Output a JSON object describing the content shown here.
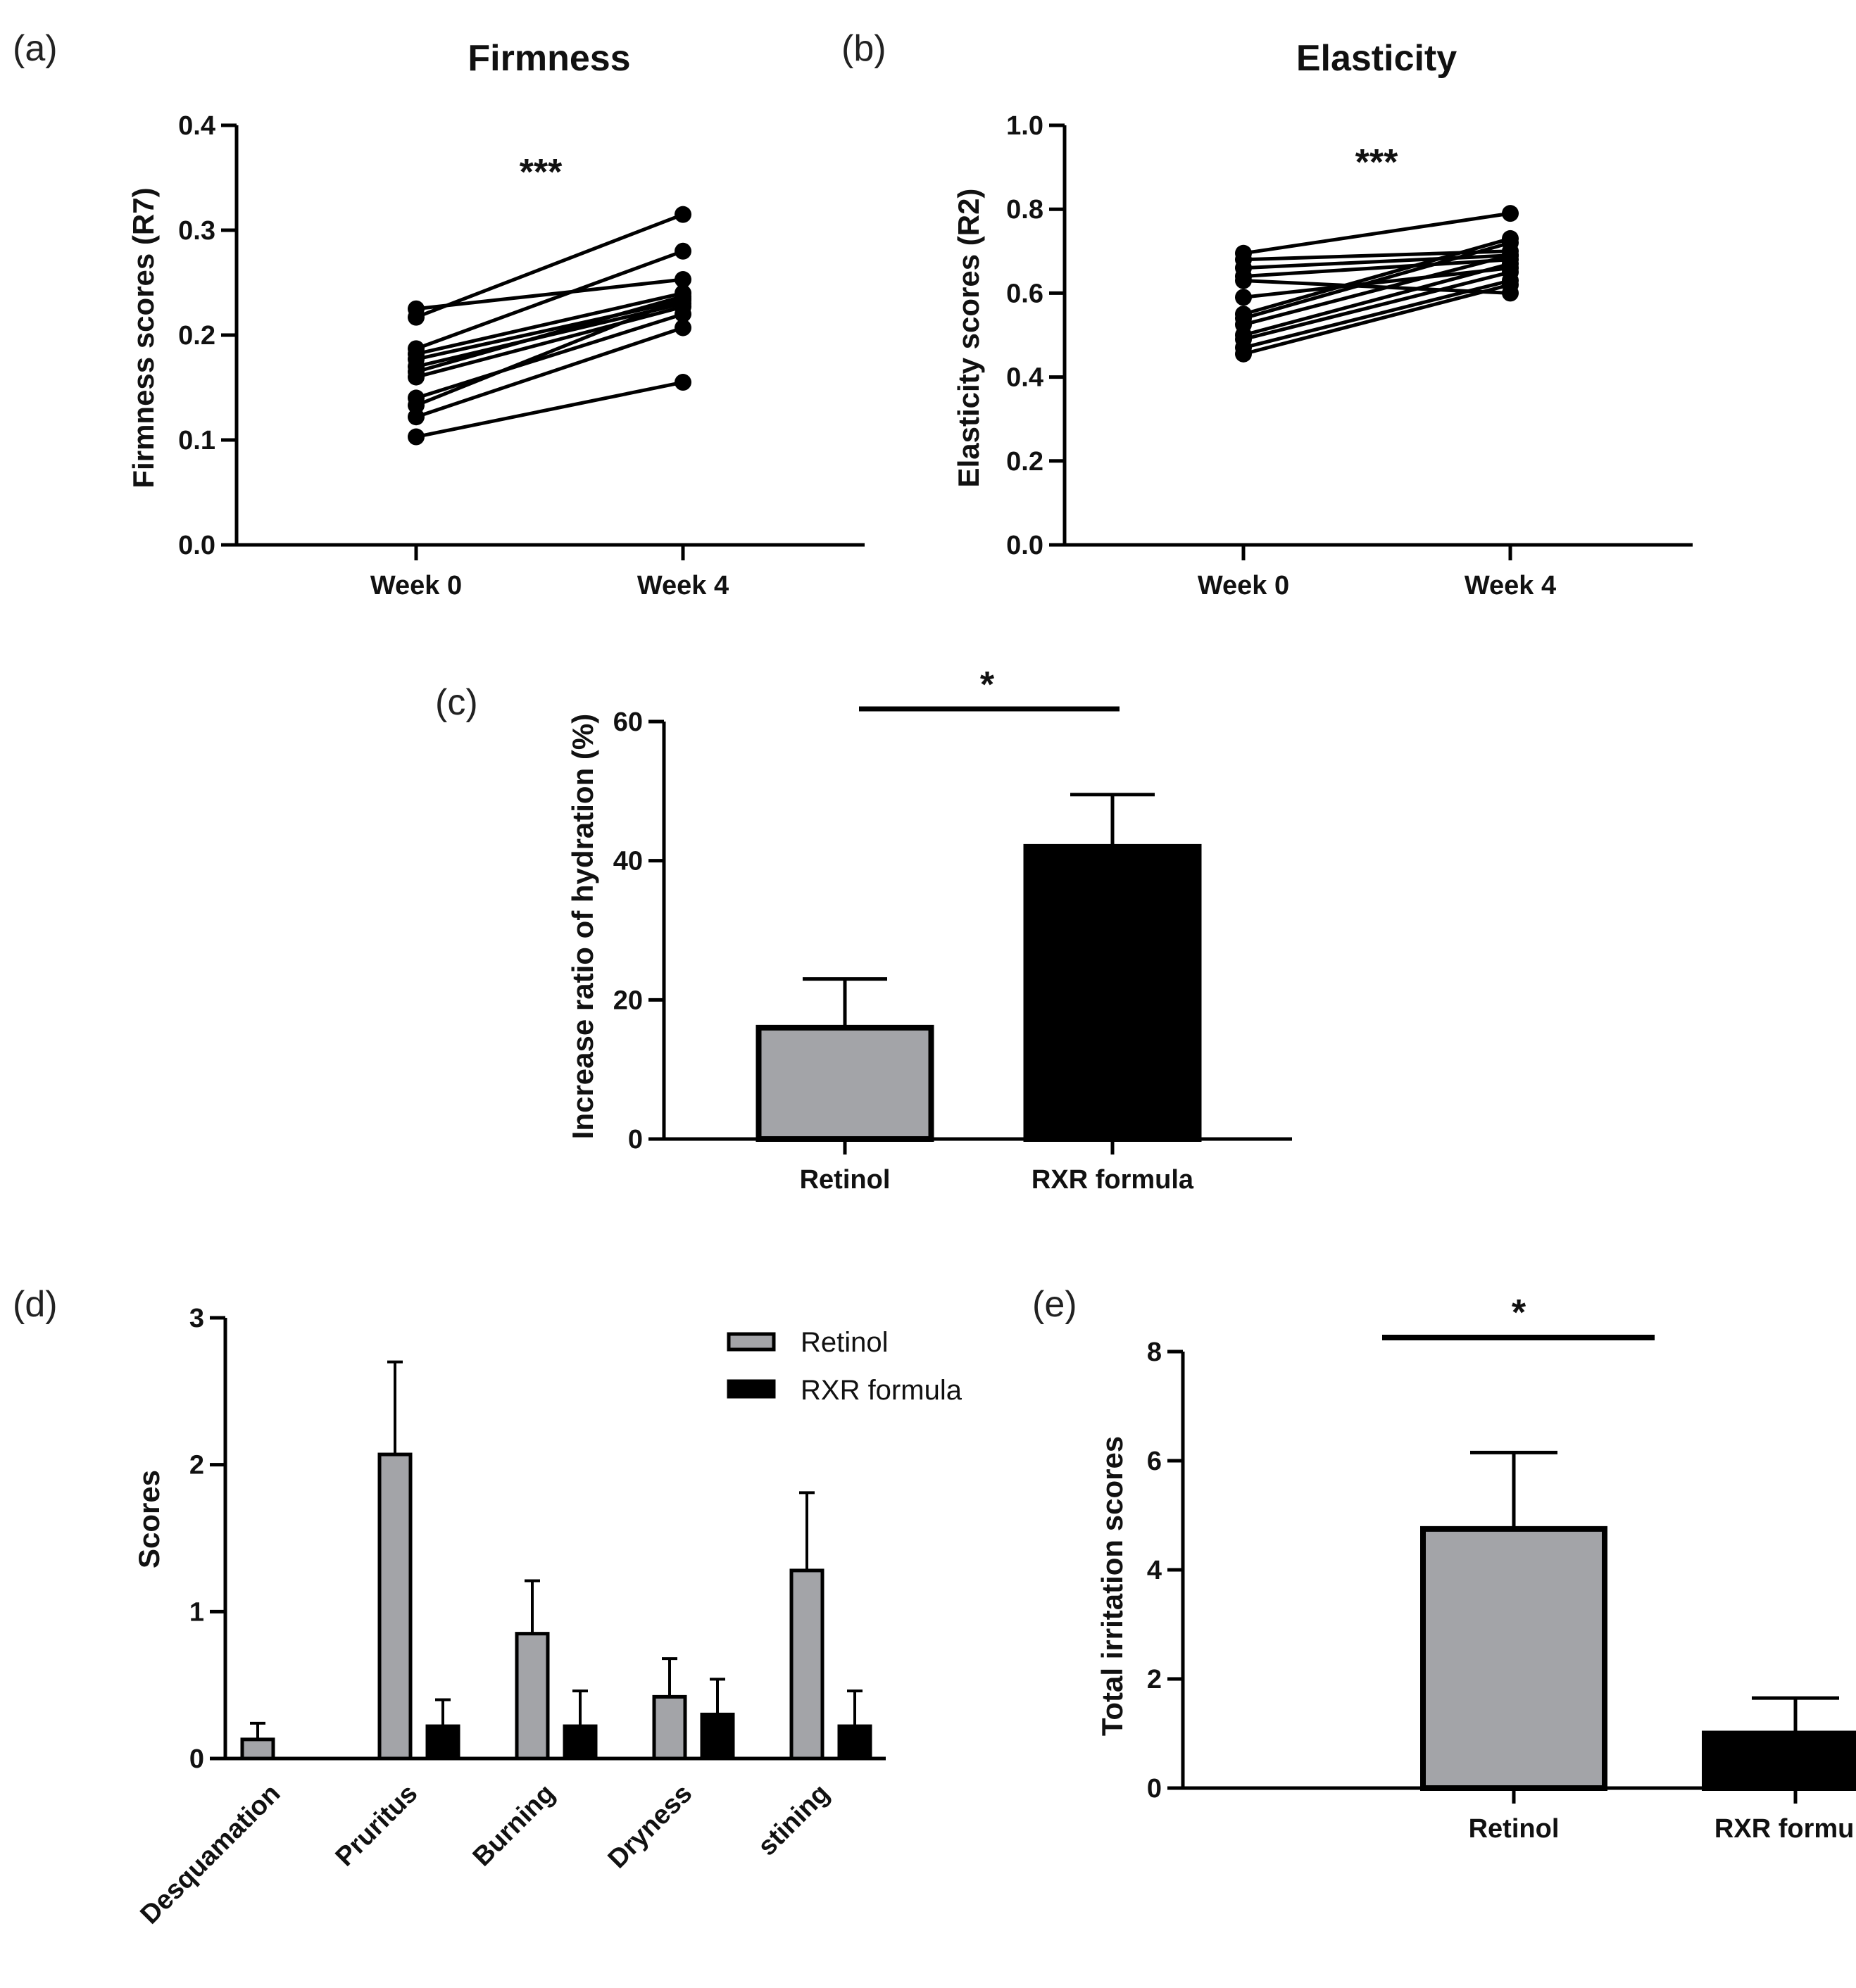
{
  "chart_data": [
    {
      "id": "a",
      "panel_label": "(a)",
      "type": "line",
      "title": "Firmness",
      "ylabel": "Firmness scores (R7)",
      "categories": [
        "Week 0",
        "Week 4"
      ],
      "ylim": [
        0,
        0.4
      ],
      "yticks": [
        "0.0",
        "0.1",
        "0.2",
        "0.3",
        "0.4"
      ],
      "significance": "***",
      "series": [
        {
          "values": [
            0.225,
            0.253
          ]
        },
        {
          "values": [
            0.217,
            0.315
          ]
        },
        {
          "values": [
            0.187,
            0.28
          ]
        },
        {
          "values": [
            0.182,
            0.24
          ]
        },
        {
          "values": [
            0.177,
            0.233
          ]
        },
        {
          "values": [
            0.17,
            0.23
          ]
        },
        {
          "values": [
            0.165,
            0.237
          ]
        },
        {
          "values": [
            0.16,
            0.227
          ]
        },
        {
          "values": [
            0.14,
            0.22
          ]
        },
        {
          "values": [
            0.133,
            0.235
          ]
        },
        {
          "values": [
            0.122,
            0.207
          ]
        },
        {
          "values": [
            0.103,
            0.155
          ]
        }
      ]
    },
    {
      "id": "b",
      "panel_label": "(b)",
      "type": "line",
      "title": "Elasticity",
      "ylabel": "Elasticity scores (R2)",
      "categories": [
        "Week 0",
        "Week 4"
      ],
      "ylim": [
        0,
        1.0
      ],
      "yticks": [
        "0.0",
        "0.2",
        "0.4",
        "0.6",
        "0.8",
        "1.0"
      ],
      "significance": "***",
      "series": [
        {
          "values": [
            0.695,
            0.79
          ]
        },
        {
          "values": [
            0.68,
            0.7
          ]
        },
        {
          "values": [
            0.66,
            0.69
          ]
        },
        {
          "values": [
            0.64,
            0.68
          ]
        },
        {
          "values": [
            0.63,
            0.6
          ]
        },
        {
          "values": [
            0.59,
            0.66
          ]
        },
        {
          "values": [
            0.55,
            0.73
          ]
        },
        {
          "values": [
            0.54,
            0.72
          ]
        },
        {
          "values": [
            0.525,
            0.69
          ]
        },
        {
          "values": [
            0.5,
            0.67
          ]
        },
        {
          "values": [
            0.49,
            0.65
          ]
        },
        {
          "values": [
            0.47,
            0.63
          ]
        },
        {
          "values": [
            0.455,
            0.62
          ]
        }
      ]
    },
    {
      "id": "c",
      "panel_label": "(c)",
      "type": "bar",
      "ylabel": "Increase ratio of hydration (%)",
      "categories": [
        "Retinol",
        "RXR formula"
      ],
      "values": [
        16,
        42
      ],
      "errors": [
        7,
        7.5
      ],
      "colors": [
        "#a3a4a8",
        "#000000"
      ],
      "ylim": [
        0,
        60
      ],
      "yticks": [
        "0",
        "20",
        "40",
        "60"
      ],
      "significance": "*"
    },
    {
      "id": "d",
      "panel_label": "(d)",
      "type": "bar",
      "ylabel": "Scores",
      "categories": [
        "Desquamation",
        "Pruritus",
        "Burning",
        "Dryness",
        "stining"
      ],
      "series": [
        {
          "name": "Retinol",
          "color": "#a3a4a8",
          "values": [
            0.13,
            2.07,
            0.85,
            0.42,
            1.28
          ],
          "errors": [
            0.11,
            0.63,
            0.36,
            0.26,
            0.53
          ]
        },
        {
          "name": "RXR formula",
          "color": "#000000",
          "values": [
            0,
            0.22,
            0.22,
            0.3,
            0.22
          ],
          "errors": [
            0,
            0.18,
            0.24,
            0.24,
            0.24
          ]
        }
      ],
      "ylim": [
        0,
        3
      ],
      "yticks": [
        "0",
        "1",
        "2",
        "3"
      ]
    },
    {
      "id": "e",
      "panel_label": "(e)",
      "type": "bar",
      "ylabel": "Total irritation scores",
      "categories": [
        "Retinol",
        "RXR formula"
      ],
      "values": [
        4.75,
        1.0
      ],
      "errors": [
        1.4,
        0.65
      ],
      "colors": [
        "#a3a4a8",
        "#000000"
      ],
      "ylim": [
        0,
        8
      ],
      "yticks": [
        "0",
        "2",
        "4",
        "6",
        "8"
      ],
      "significance": "*"
    }
  ]
}
